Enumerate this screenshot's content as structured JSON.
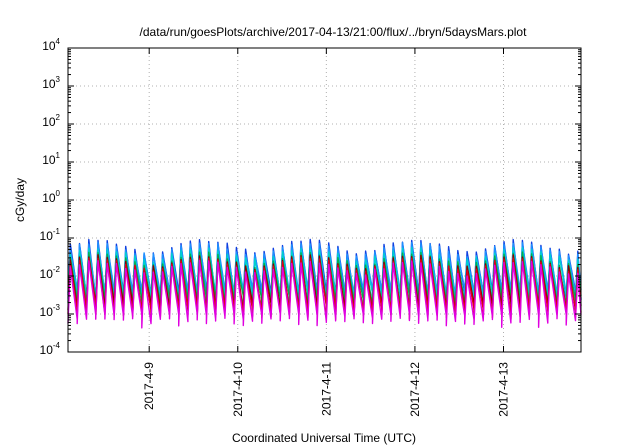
{
  "chart_data": {
    "type": "line",
    "title": "/data/run/goesPlots/archive/2017-04-13/21:00/flux/../bryn/5daysMars.plot",
    "xlabel": "Coordinated Universal Time (UTC)",
    "ylabel": "cGy/day",
    "yscale": "log",
    "ylim": [
      0.0001,
      10000
    ],
    "y_ticks": [
      {
        "base": "10",
        "exp": "-4",
        "value": 0.0001
      },
      {
        "base": "10",
        "exp": "-3",
        "value": 0.001
      },
      {
        "base": "10",
        "exp": "-2",
        "value": 0.01
      },
      {
        "base": "10",
        "exp": "-1",
        "value": 0.1
      },
      {
        "base": "10",
        "exp": "0",
        "value": 1
      },
      {
        "base": "10",
        "exp": "1",
        "value": 10
      },
      {
        "base": "10",
        "exp": "2",
        "value": 100
      },
      {
        "base": "10",
        "exp": "3",
        "value": 1000
      },
      {
        "base": "10",
        "exp": "4",
        "value": 10000
      }
    ],
    "xlim": [
      "2017-04-08 02:00",
      "2017-04-13 21:00"
    ],
    "x_ticks": [
      {
        "label": "2017-4-9",
        "value": "2017-04-09 00:00"
      },
      {
        "label": "2017-4-10",
        "value": "2017-04-10 00:00"
      },
      {
        "label": "2017-4-11",
        "value": "2017-04-11 00:00"
      },
      {
        "label": "2017-4-12",
        "value": "2017-04-12 00:00"
      },
      {
        "label": "2017-4-13",
        "value": "2017-04-13 00:00"
      }
    ],
    "grid": true,
    "legend": "none",
    "cycle_period_hours": 2.5,
    "series_colors": [
      "#e0001b",
      "#8b0000",
      "#00b050",
      "#00d0d0",
      "#1e90ff",
      "#1040e0",
      "#e000e0"
    ],
    "series_levels": [
      {
        "color": "#1040e0",
        "peak": 0.065,
        "trough": 0.0025
      },
      {
        "color": "#1e90ff",
        "peak": 0.055,
        "trough": 0.003
      },
      {
        "color": "#00d0d0",
        "peak": 0.04,
        "trough": 0.0022
      },
      {
        "color": "#00b050",
        "peak": 0.03,
        "trough": 0.0018
      },
      {
        "color": "#8b0000",
        "peak": 0.025,
        "trough": 0.0012
      },
      {
        "color": "#e0001b",
        "peak": 0.022,
        "trough": 0.001
      },
      {
        "color": "#e000e0",
        "peak": 0.018,
        "trough": 0.0006
      }
    ]
  }
}
